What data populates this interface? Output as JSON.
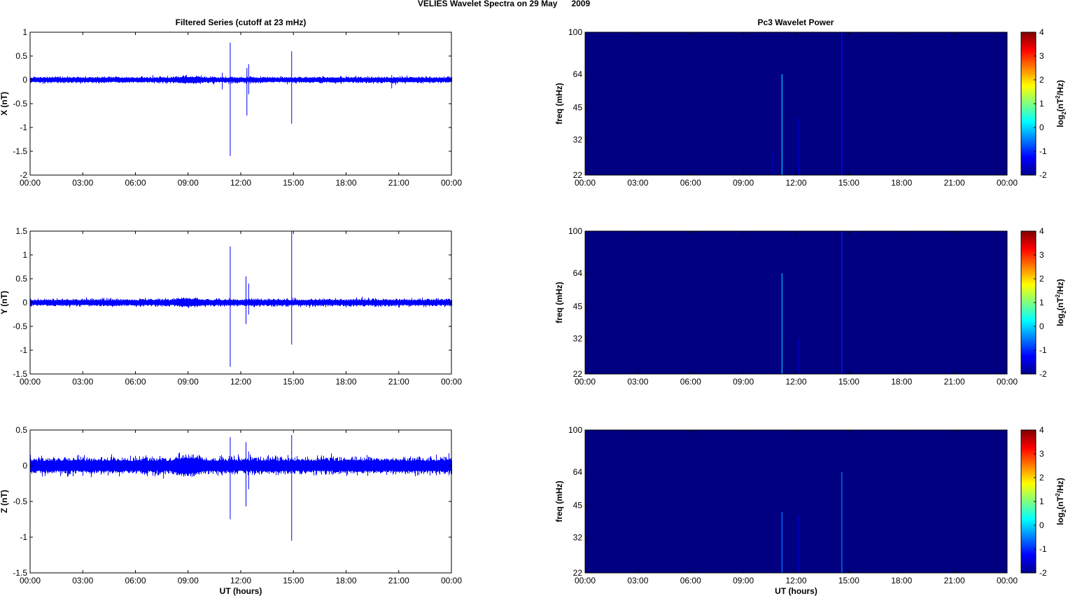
{
  "figure": {
    "title": "VELIES Wavelet Spectra on 29 May      2009",
    "left_title": "Filtered Series (cutoff at 23 mHz)",
    "right_title": "Pc3 Wavelet Power",
    "xlabel": "UT (hours)",
    "spectrum_ylabel": "freq (mHz)",
    "colorbar_label_base": "log",
    "colorbar_label_sub": "2",
    "colorbar_label_open": "(nT",
    "colorbar_label_sup": "2",
    "colorbar_label_close": "/Hz)"
  },
  "chart_data": [
    {
      "type": "line",
      "title": "Filtered Series (cutoff at 23 mHz)",
      "ylabel": "X (nT)",
      "xlabel": "",
      "xlim": [
        0,
        24
      ],
      "ylim": [
        -2,
        1
      ],
      "xticklabels": [
        "00:00",
        "03:00",
        "06:00",
        "09:00",
        "12:00",
        "15:00",
        "18:00",
        "21:00",
        "00:00"
      ],
      "yticks": [
        1,
        0.5,
        0,
        -0.5,
        -1,
        -1.5,
        -2
      ],
      "yticklabels": [
        "1",
        "0.5",
        "0",
        "-0.5",
        "-1",
        "-1.5",
        "-2"
      ],
      "color": "#0000ff",
      "noise_amplitude": 0.05,
      "spikes": [
        {
          "t": 10.95,
          "min": -0.2,
          "max": 0.15
        },
        {
          "t": 11.4,
          "min": -1.6,
          "max": 0.78
        },
        {
          "t": 12.35,
          "min": -0.75,
          "max": 0.25
        },
        {
          "t": 12.45,
          "min": -0.3,
          "max": 0.33
        },
        {
          "t": 14.9,
          "min": -0.92,
          "max": 0.6
        },
        {
          "t": 20.6,
          "min": -0.18,
          "max": 0.1
        }
      ]
    },
    {
      "type": "line",
      "title": "",
      "ylabel": "Y (nT)",
      "xlabel": "",
      "xlim": [
        0,
        24
      ],
      "ylim": [
        -1.5,
        1.5
      ],
      "xticklabels": [
        "00:00",
        "03:00",
        "06:00",
        "09:00",
        "12:00",
        "15:00",
        "18:00",
        "21:00",
        "00:00"
      ],
      "yticks": [
        1.5,
        1,
        0.5,
        0,
        -0.5,
        -1,
        -1.5
      ],
      "yticklabels": [
        "1.5",
        "1",
        "0.5",
        "0",
        "-0.5",
        "-1",
        "-1.5"
      ],
      "color": "#0000ff",
      "noise_amplitude": 0.06,
      "spikes": [
        {
          "t": 11.4,
          "min": -1.35,
          "max": 1.18
        },
        {
          "t": 12.3,
          "min": -0.45,
          "max": 0.55
        },
        {
          "t": 12.45,
          "min": -0.25,
          "max": 0.4
        },
        {
          "t": 14.9,
          "min": -0.88,
          "max": 1.5
        }
      ]
    },
    {
      "type": "line",
      "title": "",
      "ylabel": "Z (nT)",
      "xlabel": "UT (hours)",
      "xlim": [
        0,
        24
      ],
      "ylim": [
        -1.5,
        0.5
      ],
      "xticklabels": [
        "00:00",
        "03:00",
        "06:00",
        "09:00",
        "12:00",
        "15:00",
        "18:00",
        "21:00",
        "00:00"
      ],
      "yticks": [
        0.5,
        0,
        -0.5,
        -1,
        -1.5
      ],
      "yticklabels": [
        "0.5",
        "0",
        "-0.5",
        "-1",
        "-1.5"
      ],
      "color": "#0000ff",
      "noise_amplitude": 0.09,
      "spikes": [
        {
          "t": 7.6,
          "min": -0.18,
          "max": 0.1
        },
        {
          "t": 11.4,
          "min": -0.75,
          "max": 0.4
        },
        {
          "t": 12.3,
          "min": -0.57,
          "max": 0.33
        },
        {
          "t": 12.45,
          "min": -0.33,
          "max": 0.2
        },
        {
          "t": 14.9,
          "min": -1.05,
          "max": 0.43
        }
      ]
    },
    {
      "type": "heatmap",
      "title": "Pc3 Wavelet Power",
      "ylabel": "freq (mHz)",
      "xlabel": "",
      "xlim": [
        0,
        24
      ],
      "ylim": [
        22,
        100
      ],
      "yscale": "log",
      "xticklabels": [
        "00:00",
        "03:00",
        "06:00",
        "09:00",
        "12:00",
        "15:00",
        "18:00",
        "21:00",
        "00:00"
      ],
      "yticks": [
        100,
        64,
        45,
        32,
        22
      ],
      "yticklabels": [
        "100",
        "64",
        "45",
        "32",
        "22"
      ],
      "colorbar": {
        "range": [
          -2,
          4
        ],
        "ticks": [
          "4",
          "3",
          "2",
          "1",
          "0",
          "-1",
          "-2"
        ]
      },
      "background_value": -2,
      "streaks": [
        {
          "t": 10.65,
          "fmax": 28,
          "value": -1.6
        },
        {
          "t": 11.2,
          "fmax": 64,
          "value": -0.2
        },
        {
          "t": 12.15,
          "fmax": 40,
          "value": -1.5
        },
        {
          "t": 14.6,
          "fmax": 100,
          "value": -1.2
        }
      ]
    },
    {
      "type": "heatmap",
      "title": "",
      "ylabel": "freq (mHz)",
      "xlabel": "",
      "xlim": [
        0,
        24
      ],
      "ylim": [
        22,
        100
      ],
      "yscale": "log",
      "xticklabels": [
        "00:00",
        "03:00",
        "06:00",
        "09:00",
        "12:00",
        "15:00",
        "18:00",
        "21:00",
        "00:00"
      ],
      "yticks": [
        100,
        64,
        45,
        32,
        22
      ],
      "yticklabels": [
        "100",
        "64",
        "45",
        "32",
        "22"
      ],
      "colorbar": {
        "range": [
          -2,
          4
        ],
        "ticks": [
          "4",
          "3",
          "2",
          "1",
          "0",
          "-1",
          "-2"
        ]
      },
      "background_value": -2,
      "streaks": [
        {
          "t": 11.2,
          "fmax": 64,
          "value": -0.3
        },
        {
          "t": 12.15,
          "fmax": 32,
          "value": -1.6
        },
        {
          "t": 14.6,
          "fmax": 100,
          "value": -1.1
        }
      ]
    },
    {
      "type": "heatmap",
      "title": "",
      "ylabel": "freq (mHz)",
      "xlabel": "UT (hours)",
      "xlim": [
        0,
        24
      ],
      "ylim": [
        22,
        100
      ],
      "yscale": "log",
      "xticklabels": [
        "00:00",
        "03:00",
        "06:00",
        "09:00",
        "12:00",
        "15:00",
        "18:00",
        "21:00",
        "00:00"
      ],
      "yticks": [
        100,
        64,
        45,
        32,
        22
      ],
      "yticklabels": [
        "100",
        "64",
        "45",
        "32",
        "22"
      ],
      "colorbar": {
        "range": [
          -2,
          4
        ],
        "ticks": [
          "4",
          "3",
          "2",
          "1",
          "0",
          "-1",
          "-2"
        ]
      },
      "background_value": -2,
      "streaks": [
        {
          "t": 11.2,
          "fmax": 42,
          "value": -0.6
        },
        {
          "t": 12.15,
          "fmax": 40,
          "value": -1.5
        },
        {
          "t": 14.6,
          "fmax": 64,
          "value": -0.6
        }
      ]
    }
  ]
}
